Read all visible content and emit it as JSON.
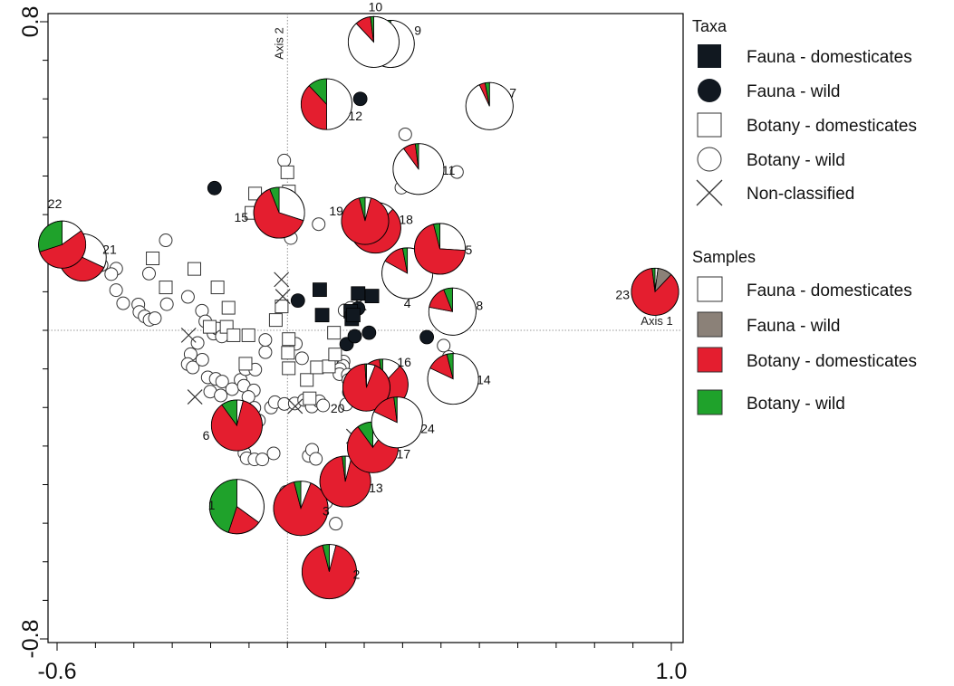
{
  "chart_data": {
    "type": "scatter",
    "x_ticks": [
      "-0.6",
      "1.0"
    ],
    "y_ticks": [
      "0.8",
      "-0.8"
    ],
    "xlim": [
      -0.6,
      1.0
    ],
    "ylim": [
      -0.8,
      0.8
    ],
    "axis_line_labels": {
      "x": "Axis 1",
      "y": "Axis 2"
    },
    "colors": {
      "fauna_dom": "#ffffff",
      "fauna_wild": "#8b8178",
      "botany_dom": "#e41e2f",
      "botany_wild": "#1fa22b",
      "fauna_marker": "#111820"
    },
    "legend_taxa": {
      "title": "Taxa",
      "items": [
        {
          "label": "Fauna - domesticates",
          "marker": "square-filled"
        },
        {
          "label": "Fauna - wild",
          "marker": "circle-filled"
        },
        {
          "label": "Botany - domesticates",
          "marker": "square-open"
        },
        {
          "label": "Botany - wild",
          "marker": "circle-open"
        },
        {
          "label": "Non-classified",
          "marker": "cross"
        }
      ]
    },
    "legend_samples": {
      "title": "Samples",
      "items": [
        {
          "label": "Fauna - domesticates",
          "key": "fauna_dom"
        },
        {
          "label": "Fauna - wild",
          "key": "fauna_wild"
        },
        {
          "label": "Botany - domesticates",
          "key": "botany_dom"
        },
        {
          "label": "Botany - wild",
          "key": "botany_wild"
        }
      ]
    },
    "taxa_points": {
      "fauna_domesticates": [
        [
          0.0842,
          0.1053
        ],
        [
          0.1841,
          0.0955
        ],
        [
          0.1649,
          0.0494
        ],
        [
          0.2202,
          0.0889
        ],
        [
          0.0904,
          0.0395
        ],
        [
          0.1677,
          0.0296
        ],
        [
          0.1715,
          0.0395
        ]
      ],
      "fauna_wild": [
        [
          0.1897,
          0.6
        ],
        [
          -0.1899,
          0.3688
        ],
        [
          0.0272,
          0.0771
        ],
        [
          0.26,
          0.2503
        ],
        [
          0.1841,
          0.0569
        ],
        [
          0.2126,
          -0.0062
        ],
        [
          0.1542,
          -0.0357
        ],
        [
          0.4015,
          0.2503
        ],
        [
          0.1753,
          -0.0152
        ],
        [
          0.3631,
          -0.0176
        ]
      ],
      "botany_domesticates": [
        [
          -0.0001,
          0.4097
        ],
        [
          0.0038,
          0.3598
        ],
        [
          -0.0842,
          0.3545
        ],
        [
          -0.0937,
          0.3045
        ],
        [
          -0.3509,
          0.1865
        ],
        [
          -0.2425,
          0.1592
        ],
        [
          -0.3168,
          0.1113
        ],
        [
          -0.182,
          0.1113
        ],
        [
          -0.1535,
          0.0585
        ],
        [
          -0.1583,
          0.0091
        ],
        [
          -0.1016,
          -0.0128
        ],
        [
          -0.2025,
          0.0091
        ],
        [
          -0.0303,
          0.0267
        ],
        [
          0.0034,
          -0.0228
        ],
        [
          0.0015,
          -0.0582
        ],
        [
          0.0034,
          -0.0983
        ],
        [
          0.0506,
          -0.1286
        ],
        [
          0.0769,
          -0.096
        ],
        [
          0.108,
          -0.0936
        ],
        [
          0.1242,
          -0.0627
        ],
        [
          0.0579,
          -0.1764
        ],
        [
          -0.1092,
          -0.0866
        ],
        [
          -0.1402,
          -0.0128
        ],
        [
          0.1213,
          -0.0062
        ],
        [
          -0.015,
          0.0619
        ]
      ],
      "botany_wild": [
        [
          -0.0084,
          0.4401
        ],
        [
          0.0088,
          0.2393
        ],
        [
          0.0814,
          0.2752
        ],
        [
          -0.3169,
          0.2333
        ],
        [
          -0.3605,
          0.1471
        ],
        [
          -0.446,
          0.1598
        ],
        [
          -0.4841,
          0.1693
        ],
        [
          -0.4588,
          0.1458
        ],
        [
          -0.4462,
          0.1041
        ],
        [
          -0.4279,
          0.0702
        ],
        [
          -0.3884,
          0.067
        ],
        [
          -0.3855,
          0.0475
        ],
        [
          -0.3719,
          0.0361
        ],
        [
          -0.359,
          0.0273
        ],
        [
          -0.3452,
          0.0314
        ],
        [
          -0.3141,
          0.0678
        ],
        [
          -0.2592,
          0.0867
        ],
        [
          -0.2226,
          0.0508
        ],
        [
          -0.2139,
          0.0233
        ],
        [
          -0.1924,
          -0.0086
        ],
        [
          -0.1823,
          0.0043
        ],
        [
          -0.1708,
          -0.0158
        ],
        [
          -0.234,
          -0.0327
        ],
        [
          -0.2521,
          -0.0619
        ],
        [
          -0.2596,
          -0.0875
        ],
        [
          -0.2467,
          -0.0963
        ],
        [
          -0.2218,
          -0.0761
        ],
        [
          -0.2075,
          -0.1219
        ],
        [
          -0.1866,
          -0.1259
        ],
        [
          -0.17,
          -0.1327
        ],
        [
          -0.2011,
          -0.1588
        ],
        [
          -0.1737,
          -0.1688
        ],
        [
          -0.1441,
          -0.1524
        ],
        [
          -0.1219,
          -0.1283
        ],
        [
          -0.109,
          -0.1008
        ],
        [
          -0.0838,
          -0.1019
        ],
        [
          -0.1136,
          -0.1436
        ],
        [
          -0.0875,
          -0.1558
        ],
        [
          -0.1016,
          -0.1728
        ],
        [
          -0.0862,
          -0.201
        ],
        [
          -0.0574,
          -0.0567
        ],
        [
          -0.0575,
          -0.0248
        ],
        [
          0.0219,
          -0.035
        ],
        [
          0.0379,
          -0.0724
        ],
        [
          -0.0426,
          -0.2001
        ],
        [
          -0.0326,
          -0.1862
        ],
        [
          -0.0081,
          -0.1908
        ],
        [
          0.0192,
          -0.1897
        ],
        [
          0.0436,
          -0.1805
        ],
        [
          0.0636,
          -0.1974
        ],
        [
          0.083,
          -0.1839
        ],
        [
          0.093,
          -0.1947
        ],
        [
          -0.097,
          -0.227
        ],
        [
          -0.0743,
          -0.2339
        ],
        [
          -0.112,
          -0.318
        ],
        [
          -0.1061,
          -0.3316
        ],
        [
          -0.0858,
          -0.3346
        ],
        [
          -0.0654,
          -0.3346
        ],
        [
          -0.0359,
          -0.319
        ],
        [
          0.0556,
          -0.3254
        ],
        [
          0.0642,
          -0.3096
        ],
        [
          0.0741,
          -0.3332
        ],
        [
          -0.0039,
          -0.4191
        ],
        [
          0.1007,
          -0.4461
        ],
        [
          0.126,
          -0.5013
        ],
        [
          0.1462,
          -0.0808
        ],
        [
          0.1448,
          -0.0921
        ],
        [
          0.1368,
          -0.1005
        ],
        [
          0.1356,
          -0.1137
        ],
        [
          0.1573,
          -0.1153
        ],
        [
          0.1588,
          -0.1285
        ],
        [
          0.175,
          -0.1401
        ],
        [
          0.1601,
          -0.1607
        ],
        [
          0.1757,
          -0.1772
        ],
        [
          0.1533,
          -0.1919
        ],
        [
          0.149,
          0.0519
        ],
        [
          0.1641,
          0.0581
        ],
        [
          0.3069,
          0.508
        ],
        [
          0.2969,
          0.3698
        ],
        [
          0.4415,
          0.4104
        ],
        [
          0.407,
          -0.0397
        ],
        [
          0.4204,
          -0.0692
        ]
      ],
      "non_classified": [
        [
          -0.0156,
          0.1317
        ],
        [
          -0.0121,
          0.0878
        ],
        [
          0.1863,
          0.0709
        ],
        [
          -0.2573,
          -0.0126
        ],
        [
          -0.2409,
          -0.1725
        ],
        [
          0.0203,
          -0.197
        ],
        [
          0.1725,
          -0.2746
        ]
      ]
    },
    "samples": [
      {
        "label": "1",
        "x": -0.1318,
        "y": -0.4569,
        "r": 30,
        "slices": [
          {
            "k": "fauna_dom",
            "v": 0.35
          },
          {
            "k": "botany_dom",
            "v": 0.2
          },
          {
            "k": "botany_wild",
            "v": 0.45
          }
        ]
      },
      {
        "label": "2",
        "x": 0.109,
        "y": -0.6255,
        "r": 30,
        "slices": [
          {
            "k": "fauna_dom",
            "v": 0.04
          },
          {
            "k": "botany_dom",
            "v": 0.92
          },
          {
            "k": "botany_wild",
            "v": 0.04
          }
        ]
      },
      {
        "label": "3",
        "x": 0.0349,
        "y": -0.4615,
        "r": 30,
        "slices": [
          {
            "k": "fauna_dom",
            "v": 0.06
          },
          {
            "k": "botany_dom",
            "v": 0.9
          },
          {
            "k": "botany_wild",
            "v": 0.04
          }
        ]
      },
      {
        "label": "4",
        "x": 0.3124,
        "y": 0.148,
        "r": 28,
        "slices": [
          {
            "k": "fauna_dom",
            "v": 0.83
          },
          {
            "k": "botany_dom",
            "v": 0.14
          },
          {
            "k": "botany_wild",
            "v": 0.03
          }
        ]
      },
      {
        "label": "5",
        "x": 0.3971,
        "y": 0.2113,
        "r": 28,
        "slices": [
          {
            "k": "fauna_dom",
            "v": 0.26
          },
          {
            "k": "botany_dom",
            "v": 0.7
          },
          {
            "k": "botany_wild",
            "v": 0.04
          }
        ]
      },
      {
        "label": "6",
        "x": -0.1318,
        "y": -0.2463,
        "r": 28,
        "slices": [
          {
            "k": "fauna_dom",
            "v": 0.04
          },
          {
            "k": "botany_dom",
            "v": 0.86
          },
          {
            "k": "botany_wild",
            "v": 0.1
          }
        ]
      },
      {
        "label": "7",
        "x": 0.5263,
        "y": 0.5812,
        "r": 26,
        "slices": [
          {
            "k": "fauna_dom",
            "v": 0.93
          },
          {
            "k": "botany_dom",
            "v": 0.04
          },
          {
            "k": "botany_wild",
            "v": 0.03
          }
        ]
      },
      {
        "label": "8",
        "x": 0.4298,
        "y": 0.0486,
        "r": 26,
        "slices": [
          {
            "k": "fauna_dom",
            "v": 0.78
          },
          {
            "k": "botany_dom",
            "v": 0.16
          },
          {
            "k": "botany_wild",
            "v": 0.06
          }
        ]
      },
      {
        "label": "9",
        "x": 0.269,
        "y": 0.7426,
        "r": 26,
        "slices": [
          {
            "k": "fauna_dom",
            "v": 0.66
          },
          {
            "k": "botany_dom",
            "v": 0.17
          },
          {
            "k": "botany_wild",
            "v": 0.17
          }
        ]
      },
      {
        "label": "10",
        "x": 0.2246,
        "y": 0.7476,
        "r": 28,
        "slices": [
          {
            "k": "fauna_dom",
            "v": 0.88
          },
          {
            "k": "botany_dom",
            "v": 0.1
          },
          {
            "k": "botany_wild",
            "v": 0.02
          }
        ]
      },
      {
        "label": "11",
        "x": 0.3414,
        "y": 0.4181,
        "r": 28,
        "slices": [
          {
            "k": "fauna_dom",
            "v": 0.9
          },
          {
            "k": "botany_dom",
            "v": 0.08
          },
          {
            "k": "botany_wild",
            "v": 0.02
          }
        ]
      },
      {
        "label": "12",
        "x": 0.1019,
        "y": 0.5862,
        "r": 28,
        "slices": [
          {
            "k": "fauna_dom",
            "v": 0.5
          },
          {
            "k": "botany_dom",
            "v": 0.38
          },
          {
            "k": "botany_wild",
            "v": 0.12
          }
        ]
      },
      {
        "label": "13",
        "x": 0.1508,
        "y": -0.3919,
        "r": 28,
        "slices": [
          {
            "k": "fauna_dom",
            "v": 0.04
          },
          {
            "k": "botany_dom",
            "v": 0.94
          },
          {
            "k": "botany_wild",
            "v": 0.02
          }
        ]
      },
      {
        "label": "14",
        "x": 0.4316,
        "y": -0.1258,
        "r": 28,
        "slices": [
          {
            "k": "fauna_dom",
            "v": 0.82
          },
          {
            "k": "botany_dom",
            "v": 0.14
          },
          {
            "k": "botany_wild",
            "v": 0.04
          }
        ]
      },
      {
        "label": "15",
        "x": -0.0216,
        "y": 0.3049,
        "r": 28,
        "slices": [
          {
            "k": "fauna_dom",
            "v": 0.3
          },
          {
            "k": "botany_dom",
            "v": 0.64
          },
          {
            "k": "botany_wild",
            "v": 0.06
          }
        ]
      },
      {
        "label": "16",
        "x": 0.248,
        "y": -0.1405,
        "r": 28,
        "slices": [
          {
            "k": "fauna_dom",
            "v": 0.12
          },
          {
            "k": "botany_dom",
            "v": 0.86
          },
          {
            "k": "botany_wild",
            "v": 0.02
          }
        ]
      },
      {
        "label": "17",
        "x": 0.2225,
        "y": -0.3033,
        "r": 28,
        "slices": [
          {
            "k": "fauna_dom",
            "v": 0.1
          },
          {
            "k": "botany_dom",
            "v": 0.8
          },
          {
            "k": "botany_wild",
            "v": 0.1
          }
        ]
      },
      {
        "label": "18",
        "x": 0.2291,
        "y": 0.2661,
        "r": 28,
        "slices": [
          {
            "k": "fauna_dom",
            "v": 0.12
          },
          {
            "k": "botany_dom",
            "v": 0.82
          },
          {
            "k": "botany_wild",
            "v": 0.06
          }
        ]
      },
      {
        "label": "19",
        "x": 0.2023,
        "y": 0.2837,
        "r": 26,
        "slices": [
          {
            "k": "fauna_dom",
            "v": 0.04
          },
          {
            "k": "botany_dom",
            "v": 0.92
          },
          {
            "k": "botany_wild",
            "v": 0.04
          }
        ]
      },
      {
        "label": "20",
        "x": 0.2058,
        "y": -0.1482,
        "r": 26,
        "slices": [
          {
            "k": "fauna_dom",
            "v": 0.06
          },
          {
            "k": "botany_dom",
            "v": 0.93
          },
          {
            "k": "botany_wild",
            "v": 0.01
          }
        ]
      },
      {
        "label": "21",
        "x": -0.5335,
        "y": 0.1888,
        "r": 26,
        "slices": [
          {
            "k": "fauna_dom",
            "v": 0.32
          },
          {
            "k": "botany_dom",
            "v": 0.43
          },
          {
            "k": "botany_wild",
            "v": 0.25
          }
        ]
      },
      {
        "label": "22",
        "x": -0.5868,
        "y": 0.2224,
        "r": 26,
        "slices": [
          {
            "k": "fauna_dom",
            "v": 0.15
          },
          {
            "k": "botany_dom",
            "v": 0.55
          },
          {
            "k": "botany_wild",
            "v": 0.3
          }
        ]
      },
      {
        "label": "23",
        "x": 0.9575,
        "y": 0.1,
        "r": 26,
        "slices": [
          {
            "k": "fauna_dom",
            "v": 0.02
          },
          {
            "k": "fauna_wild",
            "v": 0.1
          },
          {
            "k": "botany_dom",
            "v": 0.86
          },
          {
            "k": "botany_wild",
            "v": 0.02
          }
        ]
      },
      {
        "label": "24",
        "x": 0.2855,
        "y": -0.2387,
        "r": 28,
        "slices": [
          {
            "k": "fauna_dom",
            "v": 0.82
          },
          {
            "k": "botany_dom",
            "v": 0.16
          },
          {
            "k": "botany_wild",
            "v": 0.02
          }
        ]
      }
    ]
  }
}
